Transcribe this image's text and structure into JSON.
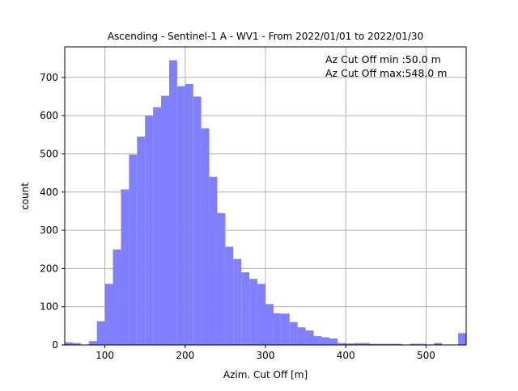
{
  "chart_data": {
    "type": "bar",
    "title": "Ascending - Sentinel-1 A - WV1 - From 2022/01/01 to 2022/01/30",
    "xlabel": "Azim. Cut Off [m]",
    "ylabel": "count",
    "xlim": [
      50,
      550
    ],
    "ylim": [
      0,
      780
    ],
    "xticks": [
      100,
      200,
      300,
      400,
      500
    ],
    "yticks": [
      0,
      100,
      200,
      300,
      400,
      500,
      600,
      700
    ],
    "grid": true,
    "bar_color": "#8080ff",
    "annotations": [
      "Az Cut Off min :50.0 m",
      "Az Cut Off max:548.0 m"
    ],
    "bin_width": 10,
    "bin_starts": [
      50,
      60,
      70,
      80,
      90,
      100,
      110,
      120,
      130,
      140,
      150,
      160,
      170,
      180,
      190,
      200,
      210,
      220,
      230,
      240,
      250,
      260,
      270,
      280,
      290,
      300,
      310,
      320,
      330,
      340,
      350,
      360,
      370,
      380,
      390,
      400,
      410,
      420,
      430,
      440,
      450,
      460,
      470,
      480,
      490,
      500,
      510,
      520,
      530,
      540
    ],
    "values": [
      7,
      5,
      0,
      10,
      62,
      160,
      250,
      407,
      498,
      545,
      600,
      622,
      652,
      745,
      677,
      683,
      650,
      567,
      440,
      345,
      257,
      225,
      190,
      173,
      160,
      107,
      83,
      82,
      60,
      46,
      38,
      23,
      20,
      17,
      5,
      4,
      5,
      5,
      3,
      3,
      3,
      3,
      0,
      3,
      3,
      0,
      5,
      0,
      0,
      31
    ]
  }
}
